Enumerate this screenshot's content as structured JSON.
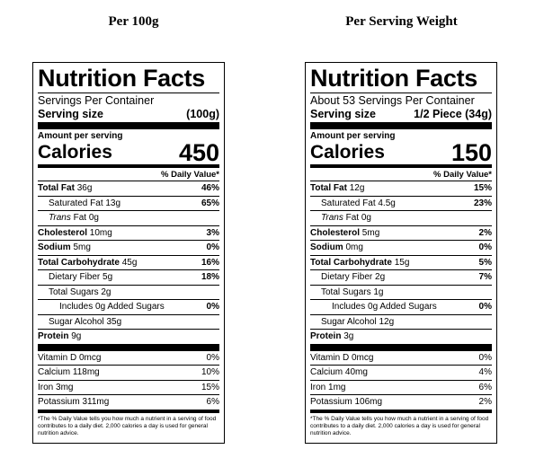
{
  "panels": [
    {
      "heading": "Per 100g",
      "title": "Nutrition Facts",
      "servings_per_container": "Servings Per Container",
      "serving_size_label": "Serving size",
      "serving_size_value": "(100g)",
      "amount_per_serving": "Amount per serving",
      "calories_label": "Calories",
      "calories_value": "450",
      "daily_value_header": "% Daily Value*",
      "total_fat": {
        "label": "Total Fat",
        "amount": "36g",
        "pct": "46%"
      },
      "saturated_fat": {
        "label": "Saturated Fat 13g",
        "pct": "65%"
      },
      "trans_fat": {
        "italic": "Trans",
        "rest": " Fat 0g"
      },
      "cholesterol": {
        "label": "Cholesterol",
        "amount": "10mg",
        "pct": "3%"
      },
      "sodium": {
        "label": "Sodium",
        "amount": "5mg",
        "pct": "0%"
      },
      "total_carb": {
        "label": "Total Carbohydrate",
        "amount": "45g",
        "pct": "16%"
      },
      "dietary_fiber": {
        "label": "Dietary Fiber 5g",
        "pct": "18%"
      },
      "total_sugars": {
        "label": "Total Sugars 2g"
      },
      "added_sugars": {
        "label": "Includes 0g Added Sugars",
        "pct": "0%"
      },
      "sugar_alcohol": {
        "label": "Sugar Alcohol 35g"
      },
      "protein": {
        "label": "Protein",
        "amount": "9g"
      },
      "vitamin_d": {
        "label": "Vitamin D 0mcg",
        "pct": "0%"
      },
      "calcium": {
        "label": "Calcium 118mg",
        "pct": "10%"
      },
      "iron": {
        "label": "Iron 3mg",
        "pct": "15%"
      },
      "potassium": {
        "label": "Potassium 311mg",
        "pct": "6%"
      },
      "footnote": "*The % Daily Value tells you how much a nutrient in a serving of food contributes to a daily diet. 2,000 calories a day is used for general nutrition advice."
    },
    {
      "heading": "Per Serving Weight",
      "title": "Nutrition Facts",
      "servings_per_container": "About 53 Servings Per Container",
      "serving_size_label": "Serving size",
      "serving_size_value": "1/2 Piece (34g)",
      "amount_per_serving": "Amount per serving",
      "calories_label": "Calories",
      "calories_value": "150",
      "daily_value_header": "% Daily Value*",
      "total_fat": {
        "label": "Total Fat",
        "amount": "12g",
        "pct": "15%"
      },
      "saturated_fat": {
        "label": "Saturated Fat 4.5g",
        "pct": "23%"
      },
      "trans_fat": {
        "italic": "Trans",
        "rest": " Fat 0g"
      },
      "cholesterol": {
        "label": "Cholesterol",
        "amount": "5mg",
        "pct": "2%"
      },
      "sodium": {
        "label": "Sodium",
        "amount": "0mg",
        "pct": "0%"
      },
      "total_carb": {
        "label": "Total Carbohydrate",
        "amount": "15g",
        "pct": "5%"
      },
      "dietary_fiber": {
        "label": "Dietary Fiber 2g",
        "pct": "7%"
      },
      "total_sugars": {
        "label": "Total Sugars 1g"
      },
      "added_sugars": {
        "label": "Includes 0g Added Sugars",
        "pct": "0%"
      },
      "sugar_alcohol": {
        "label": "Sugar Alcohol 12g"
      },
      "protein": {
        "label": "Protein",
        "amount": "3g"
      },
      "vitamin_d": {
        "label": "Vitamin D 0mcg",
        "pct": "0%"
      },
      "calcium": {
        "label": "Calcium 40mg",
        "pct": "4%"
      },
      "iron": {
        "label": "Iron 1mg",
        "pct": "6%"
      },
      "potassium": {
        "label": "Potassium 106mg",
        "pct": "2%"
      },
      "footnote": "*The % Daily Value tells you how much a nutrient in a serving of food contributes to a daily diet. 2,000 calories a day is used for general nutrition advice."
    }
  ]
}
